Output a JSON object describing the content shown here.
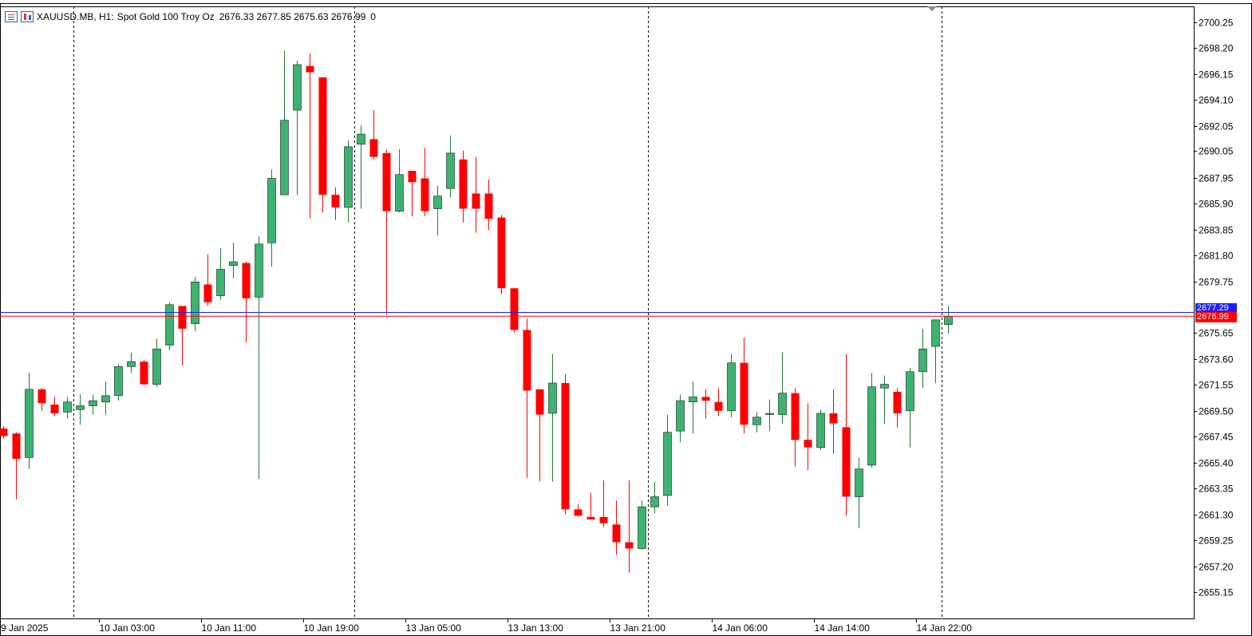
{
  "header": {
    "symbol": "XAUUSD.MB, H1:",
    "description": "Spot Gold 100 Troy Oz",
    "ohlc": "2676.33 2677.85 2675.63 2676.99",
    "volume": "0"
  },
  "price_tags": {
    "bid": "2676.99",
    "ask": "2677.29"
  },
  "colors": {
    "bull": "#3cb371",
    "bear": "#ff0000",
    "bid_line": "#ff0000",
    "ask_line": "#1d1dff",
    "grid": "#000000"
  },
  "chart_data": {
    "type": "candlestick",
    "timeframe": "H1",
    "ylim": [
      2653.9,
      2701.5
    ],
    "y_ticks": [
      "2700.25",
      "2698.20",
      "2696.15",
      "2694.10",
      "2692.05",
      "2690.05",
      "2687.95",
      "2685.90",
      "2683.85",
      "2681.80",
      "2679.75",
      "2675.65",
      "2673.60",
      "2671.55",
      "2669.50",
      "2667.45",
      "2665.40",
      "2663.35",
      "2661.30",
      "2659.25",
      "2657.20",
      "2655.15"
    ],
    "x_labels": [
      "9 Jan 2025",
      "10 Jan 03:00",
      "10 Jan 11:00",
      "10 Jan 19:00",
      "13 Jan 05:00",
      "13 Jan 13:00",
      "13 Jan 21:00",
      "14 Jan 06:00",
      "14 Jan 14:00",
      "14 Jan 22:00"
    ],
    "x_label_bars": [
      -0.5,
      7.5,
      15.5,
      23.5,
      31.5,
      39.5,
      47.5,
      55.5,
      63.5,
      71.5
    ],
    "separators_bars": [
      5.5,
      27.5,
      50.5,
      73.5
    ],
    "bid": 2676.99,
    "ask": 2677.29,
    "candles": [
      [
        2668.1,
        2668.3,
        2667.3,
        2667.5
      ],
      [
        2667.7,
        2667.8,
        2662.5,
        2665.7
      ],
      [
        2665.8,
        2672.5,
        2664.9,
        2671.2
      ],
      [
        2671.2,
        2671.3,
        2669.5,
        2670.1
      ],
      [
        2670.0,
        2670.6,
        2669.1,
        2669.3
      ],
      [
        2669.4,
        2670.6,
        2668.9,
        2670.2
      ],
      [
        2669.6,
        2670.8,
        2668.4,
        2669.9
      ],
      [
        2669.9,
        2670.8,
        2669.2,
        2670.3
      ],
      [
        2670.2,
        2671.8,
        2669.2,
        2670.7
      ],
      [
        2670.7,
        2673.2,
        2670.3,
        2673.0
      ],
      [
        2673.0,
        2674.1,
        2672.5,
        2673.4
      ],
      [
        2673.4,
        2673.5,
        2671.5,
        2671.6
      ],
      [
        2671.6,
        2675.2,
        2671.4,
        2674.4
      ],
      [
        2674.7,
        2678.1,
        2674.3,
        2677.9
      ],
      [
        2677.8,
        2677.8,
        2673.1,
        2676.0
      ],
      [
        2676.4,
        2680.1,
        2675.8,
        2679.7
      ],
      [
        2679.5,
        2681.9,
        2677.8,
        2678.1
      ],
      [
        2678.6,
        2682.4,
        2678.3,
        2680.7
      ],
      [
        2681.0,
        2682.8,
        2680.0,
        2681.3
      ],
      [
        2681.2,
        2681.3,
        2674.9,
        2678.4
      ],
      [
        2678.5,
        2683.3,
        2664.1,
        2682.7
      ],
      [
        2682.8,
        2688.6,
        2680.9,
        2687.9
      ],
      [
        2686.6,
        2698.0,
        2686.6,
        2692.5
      ],
      [
        2693.3,
        2697.2,
        2686.6,
        2696.9
      ],
      [
        2696.8,
        2697.8,
        2684.7,
        2696.3
      ],
      [
        2695.9,
        2695.9,
        2685.2,
        2686.6
      ],
      [
        2686.6,
        2687.2,
        2684.6,
        2685.6
      ],
      [
        2685.6,
        2690.9,
        2684.4,
        2690.4
      ],
      [
        2690.6,
        2692.1,
        2685.5,
        2691.4
      ],
      [
        2691.0,
        2693.3,
        2689.4,
        2689.6
      ],
      [
        2689.9,
        2690.2,
        2677.1,
        2685.3
      ],
      [
        2685.3,
        2690.2,
        2685.2,
        2688.2
      ],
      [
        2688.5,
        2688.5,
        2684.9,
        2687.6
      ],
      [
        2687.9,
        2690.3,
        2684.9,
        2685.3
      ],
      [
        2685.5,
        2687.3,
        2683.4,
        2686.5
      ],
      [
        2687.1,
        2691.3,
        2686.4,
        2689.9
      ],
      [
        2689.4,
        2690.1,
        2684.4,
        2685.5
      ],
      [
        2686.7,
        2689.6,
        2683.6,
        2685.5
      ],
      [
        2686.7,
        2687.8,
        2683.8,
        2684.7
      ],
      [
        2684.8,
        2685.0,
        2678.7,
        2679.2
      ],
      [
        2679.2,
        2679.2,
        2675.7,
        2675.9
      ],
      [
        2675.9,
        2676.8,
        2664.2,
        2671.1
      ],
      [
        2671.2,
        2671.2,
        2663.9,
        2669.2
      ],
      [
        2669.3,
        2674.0,
        2663.9,
        2671.7
      ],
      [
        2671.7,
        2672.4,
        2661.3,
        2661.7
      ],
      [
        2661.7,
        2662.1,
        2661.1,
        2661.2
      ],
      [
        2661.1,
        2663.0,
        2661.0,
        2660.9
      ],
      [
        2661.1,
        2664.0,
        2660.3,
        2660.6
      ],
      [
        2660.5,
        2662.4,
        2658.1,
        2659.1
      ],
      [
        2659.1,
        2664.0,
        2656.7,
        2658.6
      ],
      [
        2658.6,
        2662.4,
        2658.5,
        2661.9
      ],
      [
        2661.9,
        2663.9,
        2661.4,
        2662.7
      ],
      [
        2662.8,
        2669.2,
        2662.0,
        2667.8
      ],
      [
        2667.9,
        2670.8,
        2667.0,
        2670.3
      ],
      [
        2670.2,
        2671.8,
        2667.7,
        2670.6
      ],
      [
        2670.6,
        2671.2,
        2668.9,
        2670.3
      ],
      [
        2670.2,
        2671.3,
        2669.1,
        2669.5
      ],
      [
        2669.5,
        2674.0,
        2669.0,
        2673.3
      ],
      [
        2673.3,
        2675.3,
        2667.7,
        2668.4
      ],
      [
        2668.4,
        2669.4,
        2667.8,
        2669.0
      ],
      [
        2669.2,
        2670.4,
        2667.9,
        2669.3
      ],
      [
        2669.2,
        2674.1,
        2668.5,
        2670.9
      ],
      [
        2670.9,
        2671.3,
        2665.1,
        2667.2
      ],
      [
        2667.2,
        2670.1,
        2664.8,
        2666.6
      ],
      [
        2666.6,
        2669.6,
        2666.4,
        2669.3
      ],
      [
        2669.3,
        2671.2,
        2666.1,
        2668.5
      ],
      [
        2668.2,
        2674.0,
        2661.2,
        2662.7
      ],
      [
        2662.7,
        2665.8,
        2660.2,
        2664.9
      ],
      [
        2665.2,
        2672.5,
        2665.0,
        2671.4
      ],
      [
        2671.3,
        2672.3,
        2668.5,
        2671.6
      ],
      [
        2671.0,
        2671.3,
        2668.2,
        2669.3
      ],
      [
        2669.5,
        2672.9,
        2666.6,
        2672.6
      ],
      [
        2672.6,
        2676.0,
        2671.3,
        2674.4
      ],
      [
        2674.6,
        2676.4,
        2671.7,
        2676.7
      ],
      [
        2676.33,
        2677.85,
        2675.63,
        2676.99
      ]
    ]
  }
}
